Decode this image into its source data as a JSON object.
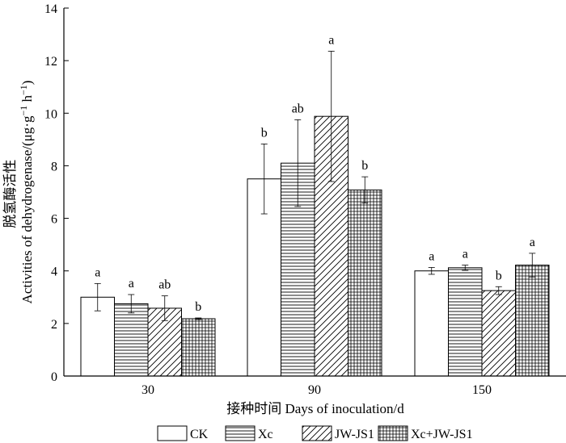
{
  "chart_data": {
    "type": "bar",
    "xlabel": "接种时间 Days of inoculation/d",
    "ylabel_line1": "脱氢酶活性",
    "ylabel_line2_prefix": "Activities of dehydrogenase/(μg·g",
    "ylabel_sup1": "−1",
    "ylabel_mid": " h",
    "ylabel_sup2": "−1",
    "ylabel_suffix": ")",
    "ylim": [
      0,
      14
    ],
    "yticks": [
      "0",
      "2",
      "4",
      "6",
      "8",
      "10",
      "12",
      "14"
    ],
    "ytick_values": [
      0,
      2,
      4,
      6,
      8,
      10,
      12,
      14
    ],
    "categories": [
      "30",
      "90",
      "150"
    ],
    "series": [
      {
        "name": "CK",
        "pattern": "none",
        "values": [
          3.0,
          7.5,
          4.0
        ],
        "errors": [
          0.52,
          1.33,
          0.13
        ],
        "labels": [
          "a",
          "b",
          "a"
        ]
      },
      {
        "name": "Xc",
        "pattern": "horizontal",
        "values": [
          2.75,
          8.1,
          4.12
        ],
        "errors": [
          0.35,
          1.65,
          0.1
        ],
        "labels": [
          "a",
          "ab",
          "a"
        ]
      },
      {
        "name": "JW-JS1",
        "pattern": "diagonal",
        "values": [
          2.58,
          9.88,
          3.25
        ],
        "errors": [
          0.47,
          2.48,
          0.15
        ],
        "labels": [
          "ab",
          "a",
          "b"
        ]
      },
      {
        "name": "Xc+JW-JS1",
        "pattern": "grid",
        "values": [
          2.18,
          7.08,
          4.22
        ],
        "errors": [
          0.03,
          0.5,
          0.45
        ],
        "labels": [
          "b",
          "b",
          "a"
        ]
      }
    ],
    "grid": false,
    "legend": "bottom"
  }
}
